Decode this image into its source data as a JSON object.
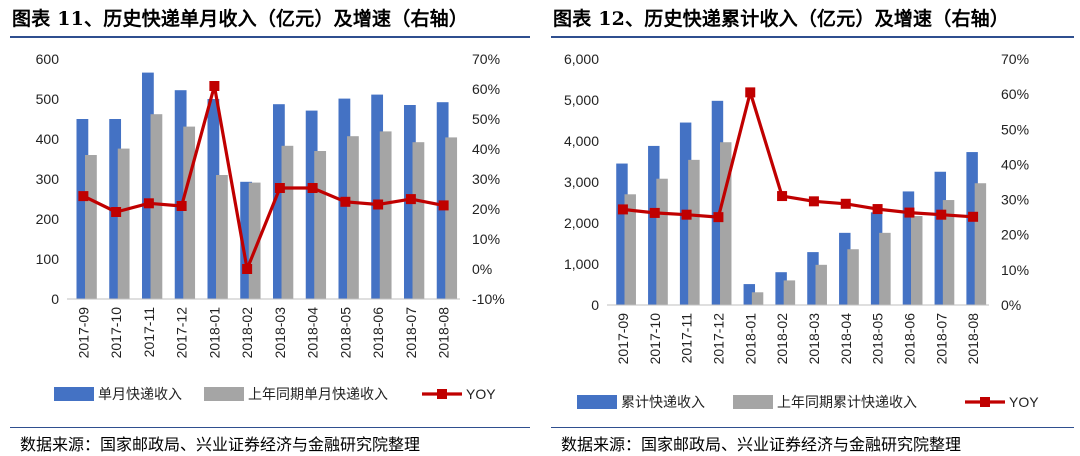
{
  "left": {
    "title": "图表 11、历史快递单月收入（亿元）及增速（右轴）",
    "source": "数据来源：国家邮政局、兴业证券经济与金融研究院整理"
  },
  "right": {
    "title": "图表 12、历史快递累计收入（亿元）及增速（右轴）",
    "source": "数据来源：国家邮政局、兴业证券经济与金融研究院整理"
  },
  "colors": {
    "primary_bar": "#4472c4",
    "secondary_bar": "#a5a5a5",
    "line": "#c00000"
  },
  "chart_data": [
    {
      "type": "bar",
      "categories": [
        "2017-09",
        "2017-10",
        "2017-11",
        "2017-12",
        "2018-01",
        "2018-02",
        "2018-03",
        "2018-04",
        "2018-05",
        "2018-06",
        "2018-07",
        "2018-08"
      ],
      "series": [
        {
          "name": "单月快递收入",
          "type": "bar",
          "axis": "left",
          "values": [
            450,
            450,
            566,
            522,
            500,
            293,
            487,
            471,
            501,
            511,
            485,
            492
          ]
        },
        {
          "name": "上年同期单月快递收入",
          "type": "bar",
          "axis": "left",
          "values": [
            360,
            376,
            462,
            431,
            310,
            291,
            383,
            370,
            407,
            419,
            392,
            404
          ]
        },
        {
          "name": "YOY",
          "type": "line",
          "axis": "right",
          "values": [
            0.243,
            0.19,
            0.219,
            0.21,
            0.61,
            0.0,
            0.27,
            0.27,
            0.224,
            0.215,
            0.233,
            0.212
          ]
        }
      ],
      "y_left": {
        "min": 0,
        "max": 600,
        "ticks": [
          "0",
          "100",
          "200",
          "300",
          "400",
          "500",
          "600"
        ]
      },
      "y_right": {
        "min": -0.1,
        "max": 0.7,
        "ticks": [
          "-10%",
          "0%",
          "10%",
          "20%",
          "30%",
          "40%",
          "50%",
          "60%",
          "70%"
        ]
      },
      "grid": false,
      "legend_position": "bottom"
    },
    {
      "type": "bar",
      "categories": [
        "2017-09",
        "2017-10",
        "2017-11",
        "2017-12",
        "2018-01",
        "2018-02",
        "2018-03",
        "2018-04",
        "2018-05",
        "2018-06",
        "2018-07",
        "2018-08"
      ],
      "series": [
        {
          "name": "累计快递收入",
          "type": "bar",
          "axis": "left",
          "values": [
            3450,
            3880,
            4450,
            4980,
            510,
            800,
            1290,
            1760,
            2260,
            2770,
            3250,
            3730
          ]
        },
        {
          "name": "上年同期累计快递收入",
          "type": "bar",
          "axis": "left",
          "values": [
            2700,
            3080,
            3540,
            3970,
            310,
            600,
            980,
            1360,
            1760,
            2170,
            2560,
            2970
          ]
        },
        {
          "name": "YOY",
          "type": "line",
          "axis": "right",
          "values": [
            0.272,
            0.262,
            0.257,
            0.25,
            0.605,
            0.31,
            0.295,
            0.288,
            0.273,
            0.263,
            0.257,
            0.251
          ]
        }
      ],
      "y_left": {
        "min": 0,
        "max": 6000,
        "ticks": [
          "0",
          "1,000",
          "2,000",
          "3,000",
          "4,000",
          "5,000",
          "6,000"
        ]
      },
      "y_right": {
        "min": 0,
        "max": 0.7,
        "ticks": [
          "0%",
          "10%",
          "20%",
          "30%",
          "40%",
          "50%",
          "60%",
          "70%"
        ]
      },
      "grid": false,
      "legend_position": "bottom"
    }
  ]
}
